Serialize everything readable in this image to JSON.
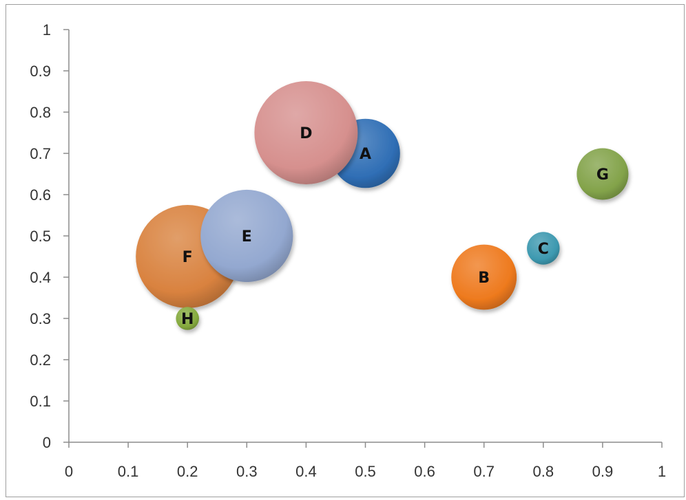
{
  "chart_data": {
    "type": "bubble",
    "title": "",
    "xlabel": "",
    "ylabel": "",
    "xlim": [
      0,
      1
    ],
    "ylim": [
      0,
      1
    ],
    "x_ticks": [
      "0",
      "0.1",
      "0.2",
      "0.3",
      "0.4",
      "0.5",
      "0.6",
      "0.7",
      "0.8",
      "0.9",
      "1"
    ],
    "y_ticks": [
      "0",
      "0.1",
      "0.2",
      "0.3",
      "0.4",
      "0.5",
      "0.6",
      "0.7",
      "0.8",
      "0.9",
      "1"
    ],
    "grid": false,
    "legend": "none",
    "points": [
      {
        "label": "A",
        "x": 0.5,
        "y": 0.7,
        "size": 9,
        "color": "#2f6eb5"
      },
      {
        "label": "B",
        "x": 0.7,
        "y": 0.4,
        "size": 8,
        "color": "#ee7a1e"
      },
      {
        "label": "C",
        "x": 0.8,
        "y": 0.47,
        "size": 2,
        "color": "#3d99b0"
      },
      {
        "label": "D",
        "x": 0.4,
        "y": 0.75,
        "size": 20,
        "color": "#d6908e"
      },
      {
        "label": "E",
        "x": 0.3,
        "y": 0.5,
        "size": 16,
        "color": "#93a8d0"
      },
      {
        "label": "F",
        "x": 0.2,
        "y": 0.45,
        "size": 20,
        "color": "#d9823f"
      },
      {
        "label": "G",
        "x": 0.9,
        "y": 0.65,
        "size": 5,
        "color": "#83a34a"
      },
      {
        "label": "H",
        "x": 0.2,
        "y": 0.3,
        "size": 1,
        "color": "#85aa3e"
      }
    ]
  }
}
